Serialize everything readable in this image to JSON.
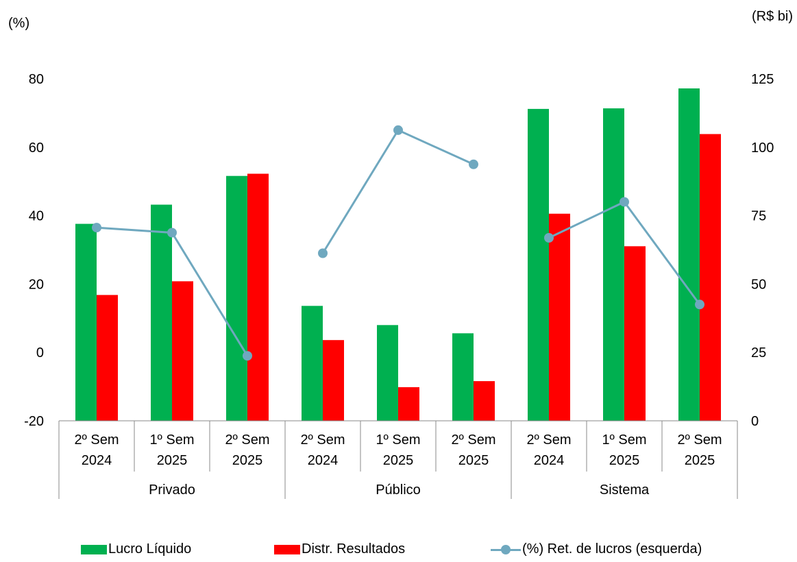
{
  "chart_data": {
    "type": "bar",
    "left_unit": "(%)",
    "right_unit": "(R$ bi)",
    "left_ticks": [
      "80",
      "60",
      "40",
      "20",
      "0",
      "-20"
    ],
    "right_ticks": [
      "125",
      "100",
      "75",
      "50",
      "25",
      "0"
    ],
    "ylim_left": [
      -20,
      80
    ],
    "ylim_right": [
      0,
      125
    ],
    "groups": [
      "Privado",
      "Público",
      "Sistema"
    ],
    "categories": [
      {
        "group": "Privado",
        "line1": "2º Sem",
        "line2": "2024"
      },
      {
        "group": "Privado",
        "line1": "1º Sem",
        "line2": "2025"
      },
      {
        "group": "Privado",
        "line1": "2º Sem",
        "line2": "2025"
      },
      {
        "group": "Público",
        "line1": "2º Sem",
        "line2": "2024"
      },
      {
        "group": "Público",
        "line1": "1º Sem",
        "line2": "2025"
      },
      {
        "group": "Público",
        "line1": "2º Sem",
        "line2": "2025"
      },
      {
        "group": "Sistema",
        "line1": "2º Sem",
        "line2": "2024"
      },
      {
        "group": "Sistema",
        "line1": "1º Sem",
        "line2": "2025"
      },
      {
        "group": "Sistema",
        "line1": "2º Sem",
        "line2": "2025"
      }
    ],
    "series": [
      {
        "name": "Lucro Líquido",
        "axis": "right",
        "kind": "bar",
        "color": "#00b050",
        "values": [
          72,
          79,
          89.5,
          42,
          35,
          32,
          114,
          114.2,
          121.5
        ]
      },
      {
        "name": "Distr. Resultados",
        "axis": "right",
        "kind": "bar",
        "color": "#ff0000",
        "values": [
          46,
          51,
          90.3,
          29.5,
          12.3,
          14.5,
          75.7,
          63.8,
          104.8
        ]
      },
      {
        "name": "(%) Ret. de lucros (esquerda)",
        "axis": "left",
        "kind": "line",
        "color": "#6fa8bf",
        "values": [
          36.5,
          35,
          -1,
          29,
          65,
          55,
          33.5,
          44,
          14
        ]
      }
    ],
    "legend_position": "bottom",
    "grid": false
  }
}
